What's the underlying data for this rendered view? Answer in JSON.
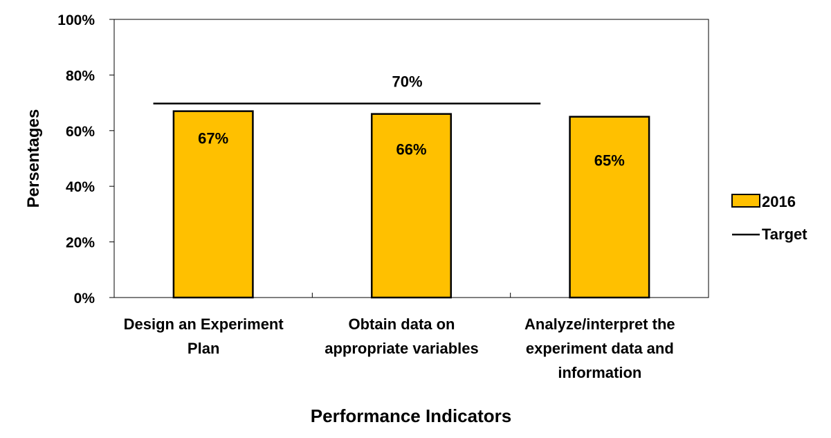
{
  "chart_data": {
    "type": "bar",
    "title": "",
    "xlabel": "Performance Indicators",
    "ylabel": "Persentages",
    "ylim": [
      0,
      100
    ],
    "yticks": [
      0,
      20,
      40,
      60,
      80,
      100
    ],
    "ytick_labels": [
      "0%",
      "20%",
      "40%",
      "60%",
      "80%",
      "100%"
    ],
    "categories": [
      [
        "Design an Experiment",
        "Plan"
      ],
      [
        "Obtain data on",
        "appropriate variables"
      ],
      [
        "Analyze/interpret the",
        "experiment data and",
        "information"
      ]
    ],
    "series": [
      {
        "name": "2016",
        "values": [
          67,
          66,
          65
        ],
        "labels": [
          "67%",
          "66%",
          "65%"
        ],
        "color": "#FFC000"
      }
    ],
    "target": {
      "name": "Target",
      "value": 70,
      "label": "70%",
      "color": "#000000"
    },
    "grid": false,
    "legend_position": "right"
  }
}
